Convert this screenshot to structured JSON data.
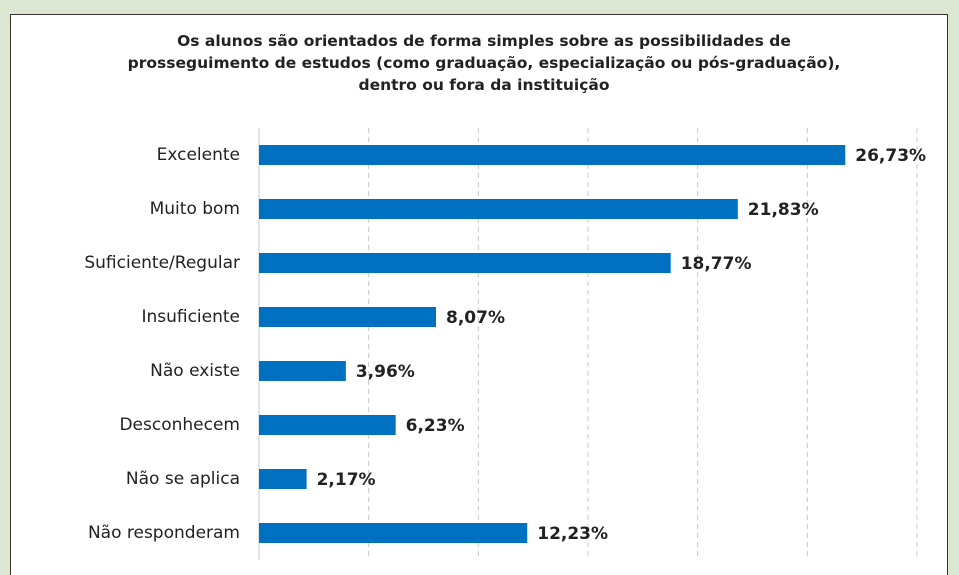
{
  "chart_data": {
    "type": "bar",
    "orientation": "horizontal",
    "title": "Os alunos são orientados de forma simples sobre as possibilidades de prosseguimento de estudos (como graduação, especialização ou pós-graduação), dentro ou fora da instituição",
    "categories": [
      "Excelente",
      "Muito bom",
      "Suficiente/Regular",
      "Insuficiente",
      "Não existe",
      "Desconhecem",
      "Não se aplica",
      "Não responderam"
    ],
    "values": [
      26.73,
      21.83,
      18.77,
      8.07,
      3.96,
      6.23,
      2.17,
      12.23
    ],
    "value_labels": [
      "26,73%",
      "21,83%",
      "18,77%",
      "8,07%",
      "3,96%",
      "6,23%",
      "2,17%",
      "12,23%"
    ],
    "color": "#0070c0",
    "xlim": [
      0,
      30
    ],
    "xticks": [
      0,
      5,
      10,
      15,
      20,
      25,
      30
    ],
    "grid": true
  }
}
